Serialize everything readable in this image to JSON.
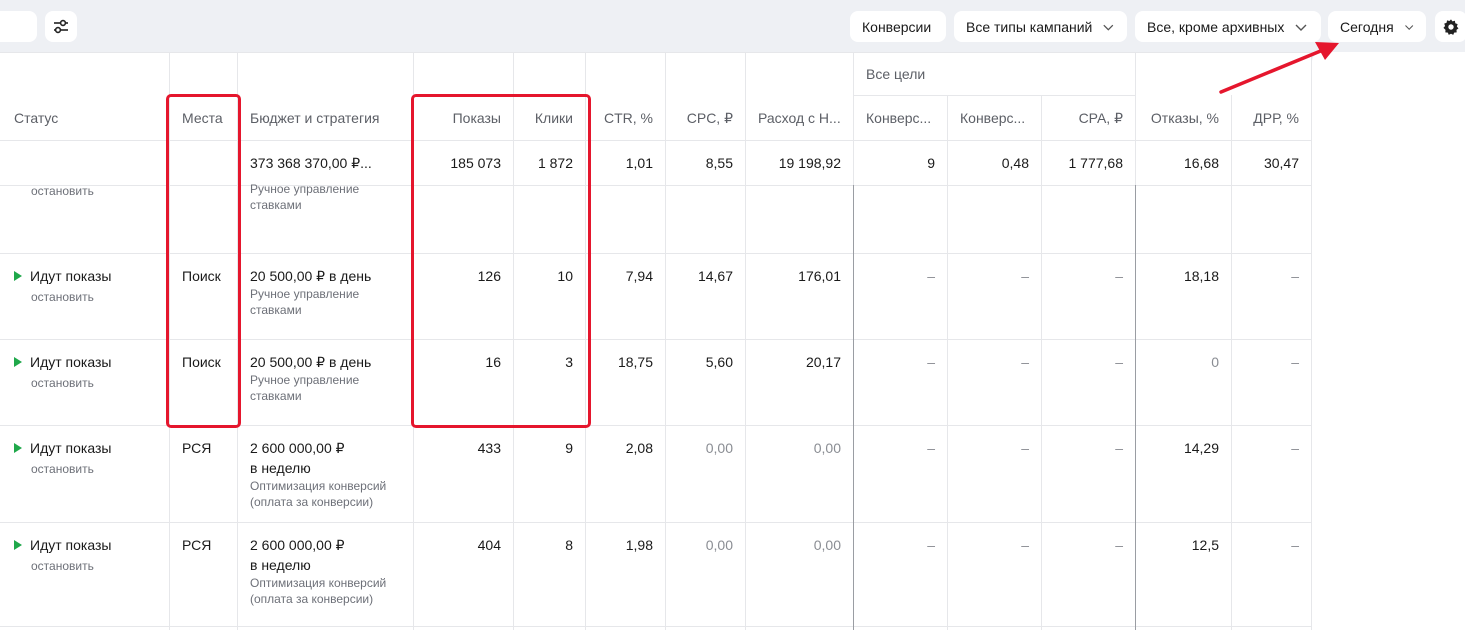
{
  "toolbar": {
    "conversions_label": "Конверсии",
    "campaign_types_label": "Все типы кампаний",
    "archive_filter_label": "Все, кроме архивных",
    "date_label": "Сегодня"
  },
  "table": {
    "group_header": "Все цели",
    "columns": {
      "status": "Статус",
      "places": "Места",
      "budget": "Бюджет и стратегия",
      "impressions": "Показы",
      "clicks": "Клики",
      "ctr": "CTR, %",
      "cpc": "CPC, ₽",
      "spend": "Расход с Н...",
      "conversions": "Конверс...",
      "conv_rate": "Конверс...",
      "cpa": "CPA, ₽",
      "bounces": "Отказы, %",
      "drr": "ДРР, %"
    },
    "totals": {
      "budget": "373 368 370,00 ₽...",
      "impressions": "185 073",
      "clicks": "1 872",
      "ctr": "1,01",
      "cpc": "8,55",
      "spend": "19 198,92",
      "conversions": "9",
      "conv_rate": "0,48",
      "cpa": "1 777,68",
      "bounces": "16,68",
      "drr": "30,47"
    },
    "partial_row": {
      "stop": "остановить",
      "strategy_line1": "Ручное управление",
      "strategy_line2": "ставками"
    },
    "rows": [
      {
        "status": "Идут показы",
        "stop": "остановить",
        "places": "Поиск",
        "budget_line1": "20 500,00 ₽ в день",
        "budget_line2": "",
        "strategy_line1": "Ручное управление",
        "strategy_line2": "ставками",
        "impressions": "126",
        "clicks": "10",
        "ctr": "7,94",
        "cpc": "14,67",
        "spend": "176,01",
        "conversions": "–",
        "conv_rate": "–",
        "cpa": "–",
        "bounces": "18,18",
        "drr": "–"
      },
      {
        "status": "Идут показы",
        "stop": "остановить",
        "places": "Поиск",
        "budget_line1": "20 500,00 ₽ в день",
        "budget_line2": "",
        "strategy_line1": "Ручное управление",
        "strategy_line2": "ставками",
        "impressions": "16",
        "clicks": "3",
        "ctr": "18,75",
        "cpc": "5,60",
        "spend": "20,17",
        "conversions": "–",
        "conv_rate": "–",
        "cpa": "–",
        "bounces": "0",
        "drr": "–"
      },
      {
        "status": "Идут показы",
        "stop": "остановить",
        "places": "РСЯ",
        "budget_line1": "2 600 000,00 ₽",
        "budget_line2": "в неделю",
        "strategy_line1": "Оптимизация конверсий",
        "strategy_line2": "(оплата за конверсии)",
        "impressions": "433",
        "clicks": "9",
        "ctr": "2,08",
        "cpc": "0,00",
        "spend": "0,00",
        "conversions": "–",
        "conv_rate": "–",
        "cpa": "–",
        "bounces": "14,29",
        "drr": "–"
      },
      {
        "status": "Идут показы",
        "stop": "остановить",
        "places": "РСЯ",
        "budget_line1": "2 600 000,00 ₽",
        "budget_line2": "в неделю",
        "strategy_line1": "Оптимизация конверсий",
        "strategy_line2": "(оплата за конверсии)",
        "impressions": "404",
        "clicks": "8",
        "ctr": "1,98",
        "cpc": "0,00",
        "spend": "0,00",
        "conversions": "–",
        "conv_rate": "–",
        "cpa": "–",
        "bounces": "12,5",
        "drr": "–"
      }
    ]
  },
  "colors": {
    "highlight": "#e5162d",
    "status_green": "#1fa84a"
  },
  "icons": [
    "sliders-icon",
    "chevron-down-icon",
    "gear-icon",
    "play-icon",
    "red-arrow"
  ]
}
